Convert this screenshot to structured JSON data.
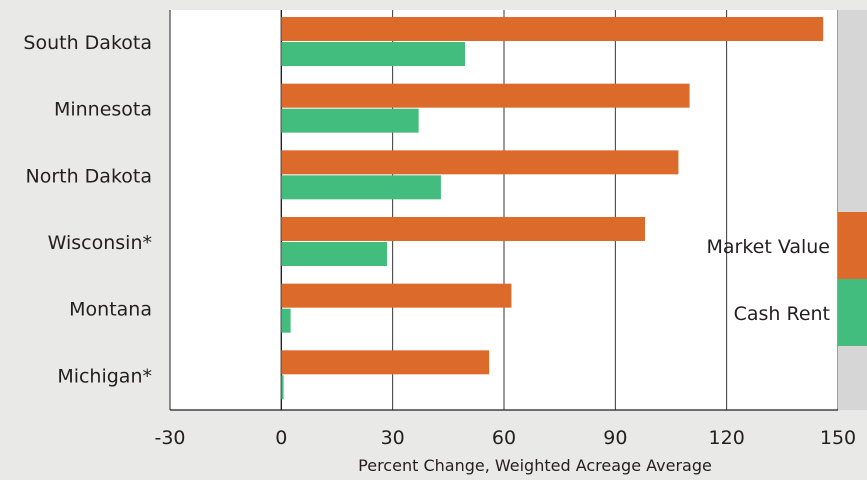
{
  "chart_data": {
    "type": "bar",
    "orientation": "horizontal",
    "categories": [
      "South Dakota",
      "Minnesota",
      "North Dakota",
      "Wisconsin*",
      "Montana",
      "Michigan*"
    ],
    "series": [
      {
        "name": "Market Value",
        "color": "#dc6a2a",
        "values": [
          146,
          110,
          107,
          98,
          62,
          56
        ]
      },
      {
        "name": "Cash Rent",
        "color": "#43bd7e",
        "values": [
          49.5,
          37,
          43,
          28.5,
          2.5,
          0.6
        ]
      }
    ],
    "xlabel": "Percent Change, Weighted Acreage Average",
    "ylabel": "",
    "xlim": [
      -30,
      150
    ],
    "xticks": [
      "-30",
      "0",
      "30",
      "60",
      "90",
      "120",
      "150"
    ],
    "grid": "vertical",
    "legend": "right"
  }
}
